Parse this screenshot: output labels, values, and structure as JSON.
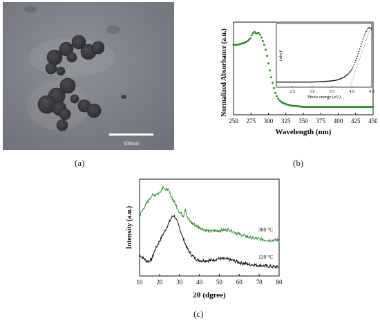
{
  "panels": {
    "a": {
      "label": "(a)",
      "scale_bar": "100nm"
    },
    "b": {
      "label": "(b)"
    },
    "c": {
      "label": "(c)"
    }
  },
  "colors": {
    "green": "#2e8b2e",
    "black": "#111111",
    "tem_bg": "#7f8288",
    "particle": "#3a3b3f"
  },
  "chart_data": [
    {
      "type": "scatter",
      "xlabel": "Wavelength (nm)",
      "ylabel": "Normalized Absorbance (a.u.)",
      "xlim": [
        250,
        450
      ],
      "xticks": [
        250,
        275,
        300,
        325,
        350,
        375,
        400,
        425,
        450
      ],
      "y_tick_labels": false,
      "series": [
        {
          "color": "#2e8b2e",
          "x": [
            250,
            255,
            260,
            265,
            270,
            274,
            277,
            280,
            283,
            286,
            289,
            292,
            295,
            298,
            301,
            304,
            307,
            310,
            313,
            316,
            319,
            322,
            325,
            330,
            335,
            340,
            350,
            360,
            380,
            400,
            425,
            450
          ],
          "y": [
            0.74,
            0.74,
            0.75,
            0.76,
            0.78,
            0.81,
            0.86,
            0.88,
            0.86,
            0.87,
            0.84,
            0.78,
            0.72,
            0.62,
            0.5,
            0.39,
            0.3,
            0.22,
            0.17,
            0.14,
            0.12,
            0.11,
            0.1,
            0.09,
            0.08,
            0.08,
            0.07,
            0.07,
            0.07,
            0.07,
            0.07,
            0.07
          ]
        }
      ],
      "inset": {
        "type": "line",
        "xlabel": "Photo energy (eV)",
        "ylabel": "(αhν)²",
        "xticks": [
          2.5,
          3.0,
          3.5,
          4.0,
          4.5
        ],
        "xlim": [
          2.1,
          4.5
        ],
        "series": [
          {
            "color": "#111111",
            "x": [
              2.1,
              2.5,
              3.0,
              3.3,
              3.5,
              3.6,
              3.7,
              3.8,
              3.9,
              4.0,
              4.05,
              4.1,
              4.15,
              4.2,
              4.25,
              4.3,
              4.35,
              4.4,
              4.45,
              4.5
            ],
            "y": [
              0.05,
              0.05,
              0.05,
              0.06,
              0.07,
              0.08,
              0.1,
              0.13,
              0.18,
              0.26,
              0.33,
              0.41,
              0.5,
              0.6,
              0.7,
              0.8,
              0.88,
              0.94,
              0.96,
              0.92
            ]
          }
        ],
        "extrapolation": {
          "x": [
            3.97,
            4.45
          ],
          "y": [
            0.0,
            0.92
          ]
        }
      }
    },
    {
      "type": "line",
      "xlabel": "2θ (dgree)",
      "ylabel": "Intensity (a.u.)",
      "xlim": [
        10,
        80
      ],
      "xticks": [
        10,
        20,
        30,
        40,
        50,
        60,
        70,
        80
      ],
      "y_tick_labels": false,
      "series": [
        {
          "name": "300 °C",
          "color": "#2e8b2e",
          "x": [
            10,
            12,
            14,
            16,
            18,
            20,
            22,
            23,
            24,
            26,
            28,
            30,
            32,
            33,
            34,
            36,
            40,
            45,
            50,
            55,
            60,
            65,
            70,
            75,
            80
          ],
          "y": [
            0.62,
            0.7,
            0.76,
            0.83,
            0.84,
            0.86,
            0.93,
            0.88,
            0.9,
            0.82,
            0.74,
            0.66,
            0.62,
            0.7,
            0.6,
            0.55,
            0.5,
            0.46,
            0.47,
            0.48,
            0.43,
            0.4,
            0.38,
            0.37,
            0.37
          ]
        },
        {
          "name": "120 °C",
          "color": "#111111",
          "x": [
            10,
            12,
            14,
            16,
            18,
            20,
            22,
            24,
            26,
            27,
            28,
            30,
            32,
            34,
            36,
            38,
            40,
            45,
            50,
            55,
            60,
            65,
            70,
            75,
            80
          ],
          "y": [
            0.22,
            0.18,
            0.15,
            0.17,
            0.28,
            0.36,
            0.44,
            0.52,
            0.6,
            0.63,
            0.6,
            0.5,
            0.38,
            0.28,
            0.22,
            0.18,
            0.16,
            0.16,
            0.18,
            0.17,
            0.14,
            0.12,
            0.11,
            0.1,
            0.09
          ]
        }
      ]
    }
  ]
}
